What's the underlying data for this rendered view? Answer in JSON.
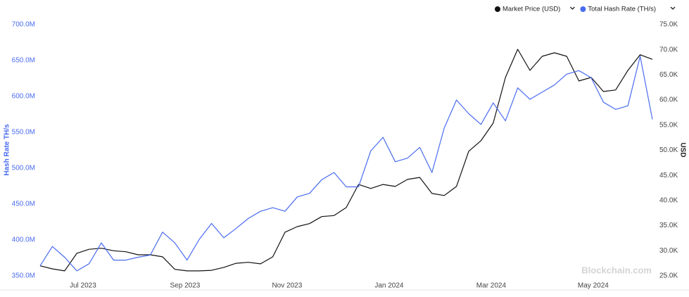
{
  "chart_data": {
    "type": "line",
    "ylabel": "Hash Rate TH/s",
    "y2label": "USD",
    "watermark": "Blockchain.com",
    "legend": "top-right",
    "grid": false,
    "x": [
      2023.43,
      2023.45,
      2023.47,
      2023.49,
      2023.51,
      2023.53,
      2023.55,
      2023.57,
      2023.59,
      2023.61,
      2023.63,
      2023.65,
      2023.67,
      2023.69,
      2023.71,
      2023.73,
      2023.75,
      2023.77,
      2023.79,
      2023.81,
      2023.83,
      2023.85,
      2023.87,
      2023.89,
      2023.91,
      2023.93,
      2023.95,
      2023.97,
      2023.99,
      2024.01,
      2024.03,
      2024.05,
      2024.07,
      2024.09,
      2024.11,
      2024.13,
      2024.15,
      2024.17,
      2024.19,
      2024.21,
      2024.23,
      2024.25,
      2024.27,
      2024.29,
      2024.31,
      2024.33,
      2024.35,
      2024.37,
      2024.39,
      2024.41,
      2024.43
    ],
    "xlim": [
      2023.43,
      2024.43
    ],
    "xticks": [
      {
        "value": 2023.5,
        "label": "Jul 2023"
      },
      {
        "value": 2023.6667,
        "label": "Sep 2023"
      },
      {
        "value": 2023.8333,
        "label": "Nov 2023"
      },
      {
        "value": 2024.0,
        "label": "Jan 2024"
      },
      {
        "value": 2024.1667,
        "label": "Mar 2024"
      },
      {
        "value": 2024.3333,
        "label": "May 2024"
      }
    ],
    "ylim": [
      350,
      700
    ],
    "yticks": [
      {
        "value": 350,
        "label": "350.0M"
      },
      {
        "value": 400,
        "label": "400.0M"
      },
      {
        "value": 450,
        "label": "450.0M"
      },
      {
        "value": 500,
        "label": "500.0M"
      },
      {
        "value": 550,
        "label": "550.0M"
      },
      {
        "value": 600,
        "label": "600.0M"
      },
      {
        "value": 650,
        "label": "650.0M"
      },
      {
        "value": 700,
        "label": "700.0M"
      }
    ],
    "y2lim": [
      25,
      75
    ],
    "y2ticks": [
      {
        "value": 25,
        "label": "25.0K"
      },
      {
        "value": 30,
        "label": "30.0K"
      },
      {
        "value": 35,
        "label": "35.0K"
      },
      {
        "value": 40,
        "label": "40.0K"
      },
      {
        "value": 45,
        "label": "45.0K"
      },
      {
        "value": 50,
        "label": "50.0K"
      },
      {
        "value": 55,
        "label": "55.0K"
      },
      {
        "value": 60,
        "label": "60.0K"
      },
      {
        "value": 65,
        "label": "65.0K"
      },
      {
        "value": 70,
        "label": "70.0K"
      },
      {
        "value": 75,
        "label": "75.0K"
      }
    ],
    "series": [
      {
        "name": "Market Price (USD)",
        "color": "#111111",
        "axis": "y2",
        "values": [
          27.0,
          26.4,
          26.0,
          29.5,
          30.3,
          30.5,
          30.0,
          29.8,
          29.2,
          29.2,
          28.8,
          26.3,
          26.0,
          26.0,
          26.1,
          26.7,
          27.5,
          27.7,
          27.4,
          28.8,
          33.7,
          34.8,
          35.4,
          36.8,
          37.0,
          38.6,
          43.2,
          42.4,
          43.2,
          42.8,
          44.2,
          44.6,
          41.4,
          41.0,
          42.8,
          49.8,
          51.9,
          55.4,
          64.5,
          70.1,
          65.9,
          68.7,
          69.4,
          68.7,
          63.8,
          64.5,
          61.7,
          62.0,
          65.9,
          69.0,
          68.1
        ]
      },
      {
        "name": "Total Hash Rate (TH/s)",
        "color": "#4a6cf0",
        "values": [
          364,
          391,
          376,
          357,
          367,
          396,
          372,
          372,
          376,
          379,
          411,
          396,
          372,
          401,
          423,
          403,
          416,
          430,
          440,
          445,
          440,
          460,
          465,
          484,
          494,
          474,
          474,
          524,
          543,
          509,
          514,
          529,
          494,
          556,
          595,
          576,
          561,
          591,
          566,
          612,
          596,
          606,
          616,
          631,
          636,
          626,
          592,
          582,
          587,
          656,
          568
        ]
      }
    ]
  }
}
